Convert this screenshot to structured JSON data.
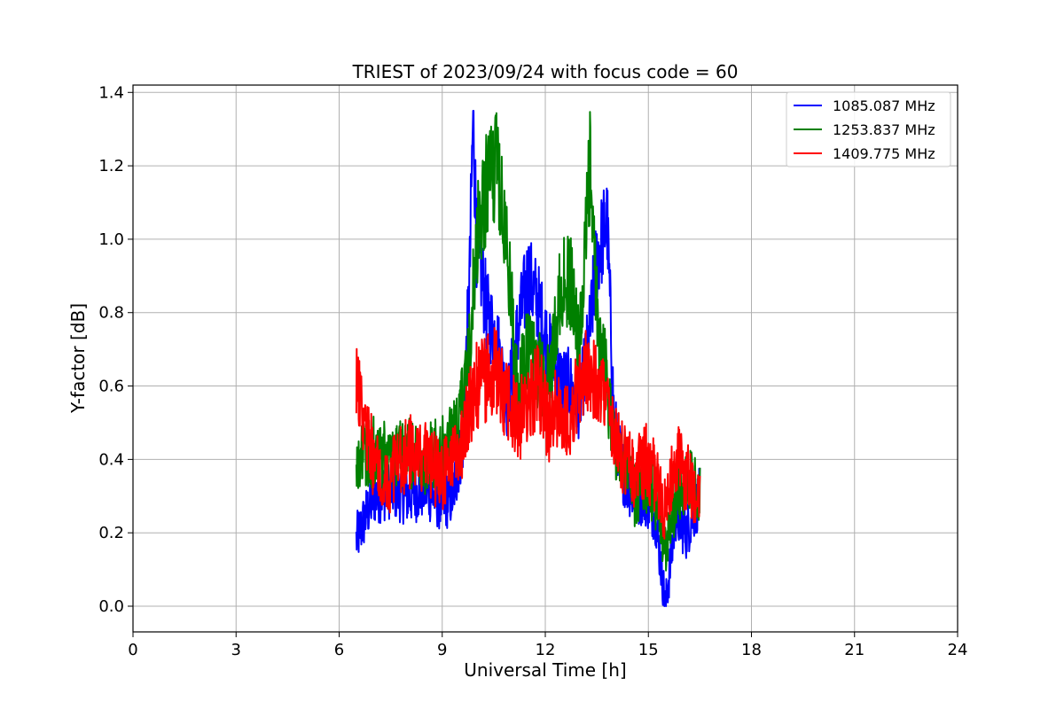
{
  "chart_data": {
    "type": "line",
    "title": "TRIEST of 2023/09/24 with focus code = 60",
    "xlabel": "Universal Time [h]",
    "ylabel": "Y-factor [dB]",
    "xlim": [
      0,
      24
    ],
    "ylim": [
      -0.07,
      1.42
    ],
    "x_ticks": [
      0,
      3,
      6,
      9,
      12,
      15,
      18,
      21,
      24
    ],
    "y_ticks": [
      0.0,
      0.2,
      0.4,
      0.6,
      0.8,
      1.0,
      1.2,
      1.4
    ],
    "x_tick_labels": [
      "0",
      "3",
      "6",
      "9",
      "12",
      "15",
      "18",
      "21",
      "24"
    ],
    "y_tick_labels": [
      "0.0",
      "0.2",
      "0.4",
      "0.6",
      "0.8",
      "1.0",
      "1.2",
      "1.4"
    ],
    "grid": true,
    "legend_position": "top-right",
    "series": [
      {
        "name": "1085.087 MHz",
        "color": "#0000ff",
        "x": [
          6.5,
          7.0,
          7.5,
          8.0,
          8.5,
          9.0,
          9.3,
          9.6,
          9.8,
          9.9,
          10.0,
          10.3,
          10.6,
          10.9,
          11.2,
          11.5,
          11.8,
          12.1,
          12.4,
          12.7,
          13.0,
          13.3,
          13.5,
          13.8,
          14.0,
          14.3,
          14.6,
          14.9,
          15.2,
          15.5,
          15.8,
          16.1,
          16.5
        ],
        "values": [
          0.18,
          0.3,
          0.32,
          0.3,
          0.32,
          0.28,
          0.3,
          0.45,
          0.9,
          1.35,
          1.0,
          0.8,
          0.72,
          0.55,
          0.75,
          0.9,
          0.82,
          0.7,
          0.62,
          0.6,
          0.55,
          0.75,
          0.95,
          1.05,
          0.5,
          0.35,
          0.3,
          0.3,
          0.25,
          0.0,
          0.25,
          0.2,
          0.3
        ]
      },
      {
        "name": "1253.837 MHz",
        "color": "#008000",
        "x": [
          6.5,
          7.0,
          7.5,
          8.0,
          8.5,
          9.0,
          9.3,
          9.6,
          9.8,
          10.0,
          10.3,
          10.6,
          10.9,
          11.2,
          11.5,
          11.8,
          12.1,
          12.4,
          12.7,
          13.0,
          13.3,
          13.5,
          13.8,
          14.0,
          14.3,
          14.6,
          14.9,
          15.2,
          15.5,
          15.8,
          16.1,
          16.5
        ],
        "values": [
          0.4,
          0.42,
          0.4,
          0.42,
          0.4,
          0.42,
          0.45,
          0.55,
          0.7,
          1.0,
          1.15,
          1.2,
          0.95,
          0.6,
          0.7,
          0.65,
          0.6,
          0.85,
          0.9,
          0.7,
          1.19,
          0.8,
          0.6,
          0.45,
          0.4,
          0.3,
          0.35,
          0.3,
          0.15,
          0.3,
          0.35,
          0.3
        ]
      },
      {
        "name": "1409.775 MHz",
        "color": "#ff0000",
        "x": [
          6.5,
          7.0,
          7.5,
          8.0,
          8.5,
          9.0,
          9.3,
          9.6,
          9.8,
          10.0,
          10.3,
          10.6,
          10.9,
          11.2,
          11.5,
          11.8,
          12.1,
          12.4,
          12.7,
          13.0,
          13.3,
          13.5,
          13.8,
          14.0,
          14.3,
          14.6,
          14.9,
          15.2,
          15.5,
          15.8,
          16.1,
          16.5
        ],
        "values": [
          0.6,
          0.4,
          0.35,
          0.42,
          0.4,
          0.35,
          0.4,
          0.45,
          0.55,
          0.6,
          0.62,
          0.65,
          0.55,
          0.5,
          0.55,
          0.6,
          0.5,
          0.55,
          0.5,
          0.6,
          0.65,
          0.6,
          0.55,
          0.45,
          0.4,
          0.35,
          0.4,
          0.35,
          0.25,
          0.4,
          0.35,
          0.3
        ]
      }
    ]
  }
}
